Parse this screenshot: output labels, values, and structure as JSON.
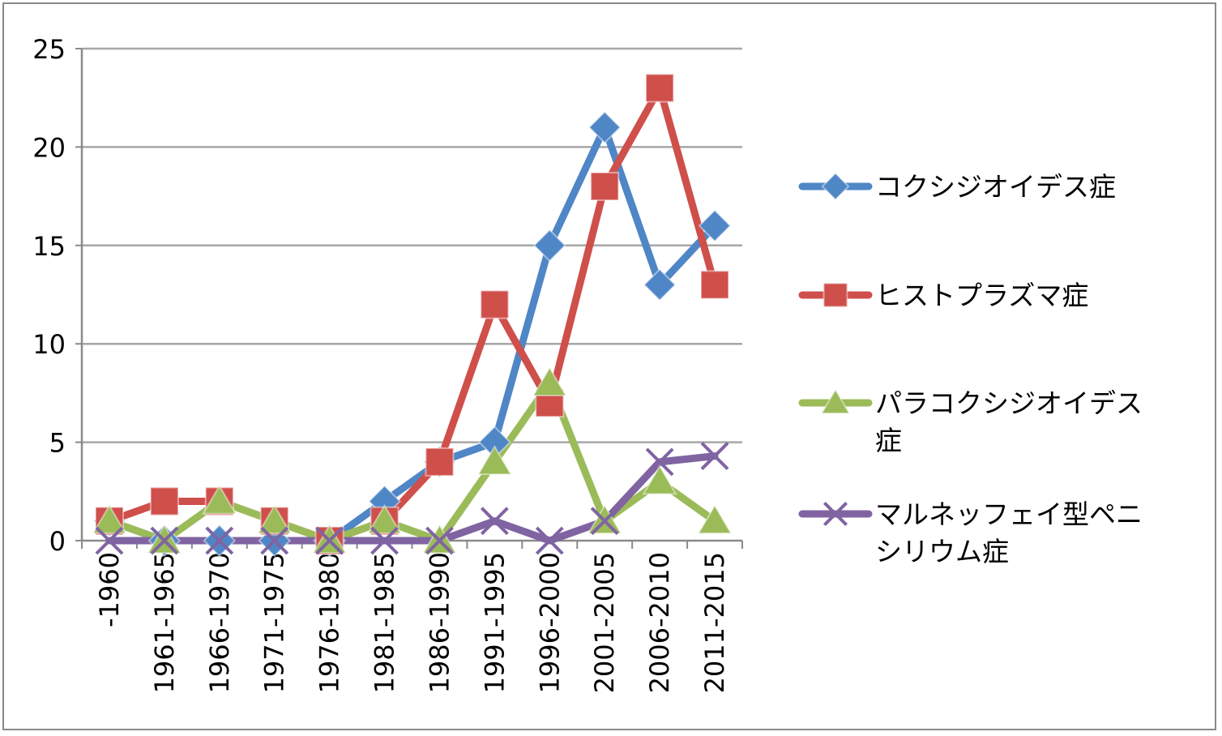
{
  "chart_data": {
    "type": "line",
    "categories": [
      "-1960",
      "1961-1965",
      "1966-1970",
      "1971-1975",
      "1976-1980",
      "1981-1985",
      "1986-1990",
      "1991-1995",
      "1996-2000",
      "2001-2005",
      "2006-2010",
      "2011-2015"
    ],
    "ylim": [
      0,
      25
    ],
    "yticks": [
      "0",
      "5",
      "10",
      "15",
      "20",
      "25"
    ],
    "grid": true,
    "legend_position": "right",
    "series": [
      {
        "name": "コクシジオイデス症",
        "legend_lines": [
          "コクシジオイデス症"
        ],
        "color": "#4f86c6",
        "marker": "diamond",
        "values": [
          1,
          0,
          0,
          0,
          0,
          2,
          4,
          5,
          15,
          21,
          13,
          16
        ]
      },
      {
        "name": "ヒストプラズマ症",
        "legend_lines": [
          "ヒストプラズマ症"
        ],
        "color": "#cf4f4b",
        "marker": "square",
        "values": [
          1,
          2,
          2,
          1,
          0,
          1,
          4,
          12,
          7,
          18,
          23,
          13
        ]
      },
      {
        "name": "パラコクシジオイデス症",
        "legend_lines": [
          "パラコクシジオイデス",
          "症"
        ],
        "color": "#9bbb59",
        "marker": "triangle",
        "values": [
          1,
          0,
          2,
          1,
          0,
          1,
          0,
          4,
          8,
          1,
          3,
          1
        ]
      },
      {
        "name": "マルネッフェイ型ペニシリウム症",
        "legend_lines": [
          "マルネッフェイ型ペニ",
          "シリウム症"
        ],
        "color": "#8064a2",
        "marker": "x",
        "values": [
          0,
          0,
          0,
          0,
          0,
          0,
          0,
          1,
          0,
          1,
          4,
          4.3
        ]
      }
    ]
  }
}
